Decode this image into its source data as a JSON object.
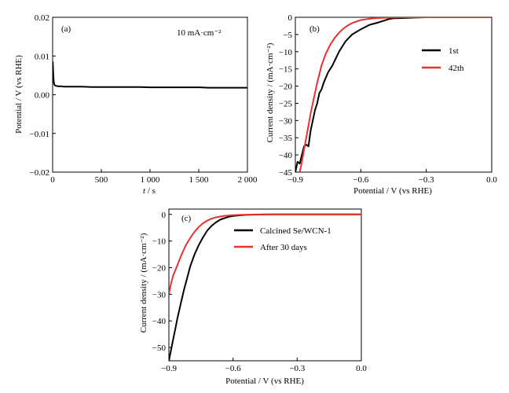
{
  "chart_data": [
    {
      "type": "line",
      "panel": "(a)",
      "annotation": "10 mA·cm⁻²",
      "xlabel_italic": "t",
      "xlabel_rest": " / s",
      "ylabel": "Potential / V (vs RHE)",
      "xlim": [
        0,
        2000
      ],
      "ylim": [
        -0.02,
        0.02
      ],
      "xticks": [
        0,
        500,
        1000,
        1500,
        2000
      ],
      "xtick_labels": [
        "0",
        "500",
        "1 000",
        "1 500",
        "2 000"
      ],
      "yticks": [
        -0.02,
        -0.01,
        0.0,
        0.01,
        0.02
      ],
      "ytick_labels": [
        "−0.02",
        "−0.01",
        "0.00",
        "0.01",
        "0.02"
      ],
      "series": [
        {
          "color": "#000000",
          "x": [
            2,
            5,
            8,
            12,
            18,
            25,
            35,
            50,
            80,
            120,
            200,
            300,
            400,
            500,
            600,
            700,
            800,
            900,
            1000,
            1100,
            1200,
            1300,
            1400,
            1500,
            1600,
            1700,
            1800,
            1900,
            1995
          ],
          "y": [
            0.0085,
            0.0065,
            0.0045,
            0.0032,
            0.0026,
            0.0024,
            0.0023,
            0.0022,
            0.0022,
            0.0021,
            0.0021,
            0.0021,
            0.002,
            0.002,
            0.002,
            0.002,
            0.002,
            0.002,
            0.0019,
            0.0019,
            0.0019,
            0.0019,
            0.0019,
            0.0019,
            0.0018,
            0.0018,
            0.0018,
            0.0018,
            0.0018
          ]
        }
      ]
    },
    {
      "type": "line",
      "panel": "(b)",
      "xlabel": "Potential / V (vs RHE)",
      "ylabel": "Current density / (mA·cm⁻²)",
      "xlim": [
        -0.9,
        0.0
      ],
      "ylim": [
        -45,
        0
      ],
      "xticks": [
        -0.9,
        -0.6,
        -0.3,
        0.0
      ],
      "xtick_labels": [
        "−0.9",
        "−0.6",
        "−0.3",
        "0.0"
      ],
      "yticks": [
        0,
        -5,
        -10,
        -15,
        -20,
        -25,
        -30,
        -35,
        -40,
        -45
      ],
      "ytick_labels": [
        "0",
        "−5",
        "−10",
        "−15",
        "−20",
        "−25",
        "−30",
        "−35",
        "−40",
        "−45"
      ],
      "legend_position": "right",
      "series": [
        {
          "name": "1st",
          "color": "#000000",
          "x": [
            -0.9,
            -0.89,
            -0.88,
            -0.87,
            -0.86,
            -0.85,
            -0.84,
            -0.83,
            -0.82,
            -0.81,
            -0.8,
            -0.79,
            -0.78,
            -0.77,
            -0.75,
            -0.73,
            -0.7,
            -0.67,
            -0.64,
            -0.6,
            -0.56,
            -0.52,
            -0.5,
            -0.47,
            -0.45,
            -0.4,
            -0.35,
            -0.3,
            -0.2,
            -0.1,
            0.0
          ],
          "y": [
            -45,
            -42,
            -42.5,
            -40,
            -37.5,
            -37,
            -37.5,
            -33,
            -30,
            -27,
            -25,
            -22,
            -21,
            -19,
            -16,
            -14,
            -10,
            -7,
            -5,
            -3.5,
            -2.2,
            -1.5,
            -1.1,
            -0.5,
            -0.3,
            -0.2,
            -0.1,
            0,
            0,
            0,
            0
          ]
        },
        {
          "name": "42th",
          "color": "#e8322f",
          "x": [
            -0.88,
            -0.87,
            -0.86,
            -0.85,
            -0.84,
            -0.83,
            -0.82,
            -0.81,
            -0.8,
            -0.79,
            -0.78,
            -0.76,
            -0.74,
            -0.72,
            -0.7,
            -0.68,
            -0.66,
            -0.64,
            -0.62,
            -0.6,
            -0.57,
            -0.54,
            -0.5,
            -0.45,
            -0.4,
            -0.3,
            -0.2,
            -0.1,
            0.0
          ],
          "y": [
            -45,
            -42,
            -38.5,
            -35,
            -31.5,
            -28,
            -25,
            -22,
            -19,
            -16.5,
            -14,
            -10.5,
            -8,
            -6,
            -4.5,
            -3.3,
            -2.4,
            -1.7,
            -1.2,
            -0.8,
            -0.5,
            -0.3,
            -0.15,
            -0.05,
            0,
            0,
            0,
            0,
            0
          ]
        }
      ]
    },
    {
      "type": "line",
      "panel": "(c)",
      "xlabel": "Potential / V (vs RHE)",
      "ylabel": "Current density / (mA·cm⁻²)",
      "xlim": [
        -0.9,
        0.0
      ],
      "ylim": [
        -55,
        2
      ],
      "xticks": [
        -0.9,
        -0.6,
        -0.3,
        0.0
      ],
      "xtick_labels": [
        "−0.9",
        "−0.6",
        "−0.3",
        "0.0"
      ],
      "yticks": [
        0,
        -10,
        -20,
        -30,
        -40,
        -50
      ],
      "ytick_labels": [
        "0",
        "−10",
        "−20",
        "−30",
        "−40",
        "−50"
      ],
      "legend_position": "right",
      "series": [
        {
          "name": "Calcined Se/WCN-1",
          "color": "#000000",
          "x": [
            -0.9,
            -0.89,
            -0.88,
            -0.87,
            -0.86,
            -0.85,
            -0.84,
            -0.83,
            -0.82,
            -0.81,
            -0.8,
            -0.78,
            -0.76,
            -0.74,
            -0.72,
            -0.7,
            -0.68,
            -0.66,
            -0.64,
            -0.62,
            -0.6,
            -0.57,
            -0.54,
            -0.5,
            -0.45,
            -0.4,
            -0.3,
            -0.2,
            -0.1,
            0.0
          ],
          "y": [
            -55,
            -51,
            -47,
            -43,
            -39,
            -35.5,
            -32,
            -28.5,
            -25.5,
            -22.5,
            -19.5,
            -15,
            -11.5,
            -8.5,
            -6,
            -4.3,
            -3,
            -2,
            -1.4,
            -0.9,
            -0.6,
            -0.35,
            -0.2,
            -0.1,
            -0.05,
            0,
            0,
            0,
            0,
            0
          ]
        },
        {
          "name": "After 30 days",
          "color": "#e8322f",
          "x": [
            -0.9,
            -0.89,
            -0.88,
            -0.87,
            -0.86,
            -0.85,
            -0.84,
            -0.83,
            -0.82,
            -0.8,
            -0.78,
            -0.76,
            -0.74,
            -0.72,
            -0.7,
            -0.68,
            -0.66,
            -0.64,
            -0.62,
            -0.6,
            -0.57,
            -0.54,
            -0.5,
            -0.45,
            -0.4,
            -0.3,
            -0.2,
            -0.1,
            0.0
          ],
          "y": [
            -30,
            -26,
            -23,
            -21,
            -19,
            -17,
            -15,
            -13.2,
            -11.5,
            -8.8,
            -6.5,
            -4.7,
            -3.3,
            -2.3,
            -1.6,
            -1.1,
            -0.8,
            -0.55,
            -0.4,
            -0.3,
            -0.2,
            -0.1,
            -0.05,
            0,
            0,
            0,
            0,
            0,
            0
          ]
        }
      ]
    }
  ]
}
